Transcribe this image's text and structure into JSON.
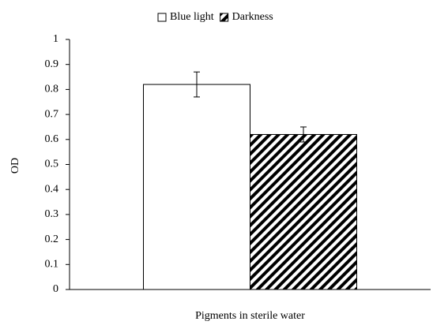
{
  "chart_data": {
    "type": "bar",
    "categories": [
      "Pigments in sterile water"
    ],
    "series": [
      {
        "name": "Blue light",
        "color": "#ffffff",
        "pattern": "none",
        "values": [
          0.82
        ],
        "errors": [
          0.05
        ]
      },
      {
        "name": "Darkness",
        "color": "#ffffff",
        "pattern": "hatch",
        "values": [
          0.62
        ],
        "errors": [
          0.03
        ]
      }
    ],
    "ylabel": "OD",
    "ylim": [
      0,
      1
    ],
    "yticks": [
      0,
      0.1,
      0.2,
      0.3,
      0.4,
      0.5,
      0.6,
      0.7,
      0.8,
      0.9,
      1
    ],
    "grid": false,
    "legend": "top"
  }
}
